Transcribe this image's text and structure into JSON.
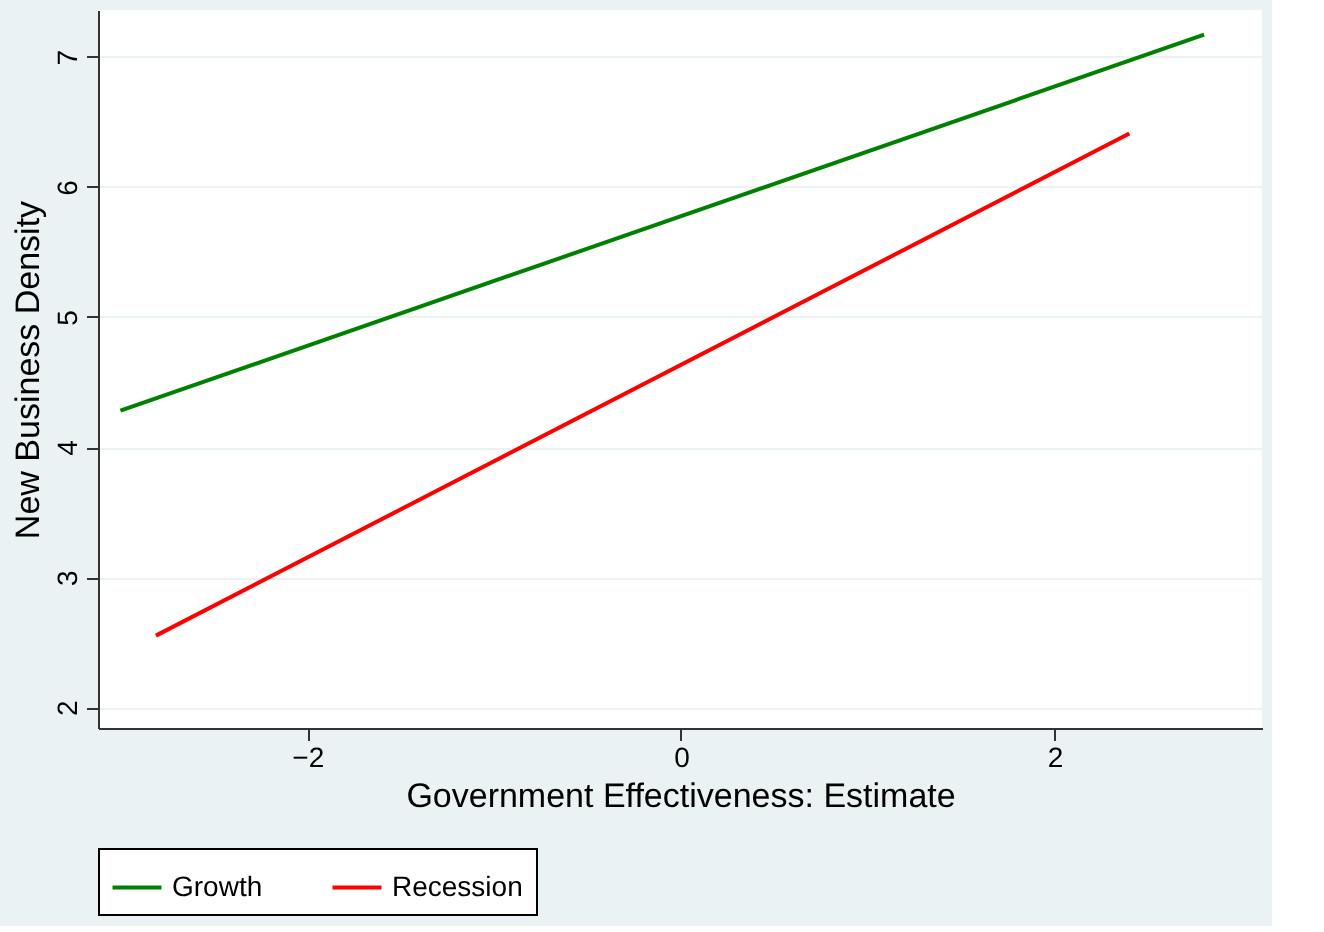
{
  "chart_data": {
    "type": "line",
    "xlabel": "Government Effectiveness: Estimate",
    "ylabel": "New Business Density",
    "series": [
      {
        "name": "Growth",
        "color": "#008000",
        "x": [
          -3.0,
          2.8
        ],
        "values": [
          4.28,
          7.17
        ]
      },
      {
        "name": "Recession",
        "color": "#ff0000",
        "x": [
          -2.81,
          2.4
        ],
        "values": [
          2.55,
          6.41
        ]
      }
    ],
    "xlim": [
      -3.12,
      3.11
    ],
    "xticks": [
      -2,
      0,
      2
    ],
    "ylim": [
      1.84,
      7.36
    ],
    "yticks": [
      2,
      3,
      4,
      5,
      6,
      7
    ],
    "grid": "y",
    "legend": "bottom",
    "marker": "none",
    "line_style": "solid"
  }
}
